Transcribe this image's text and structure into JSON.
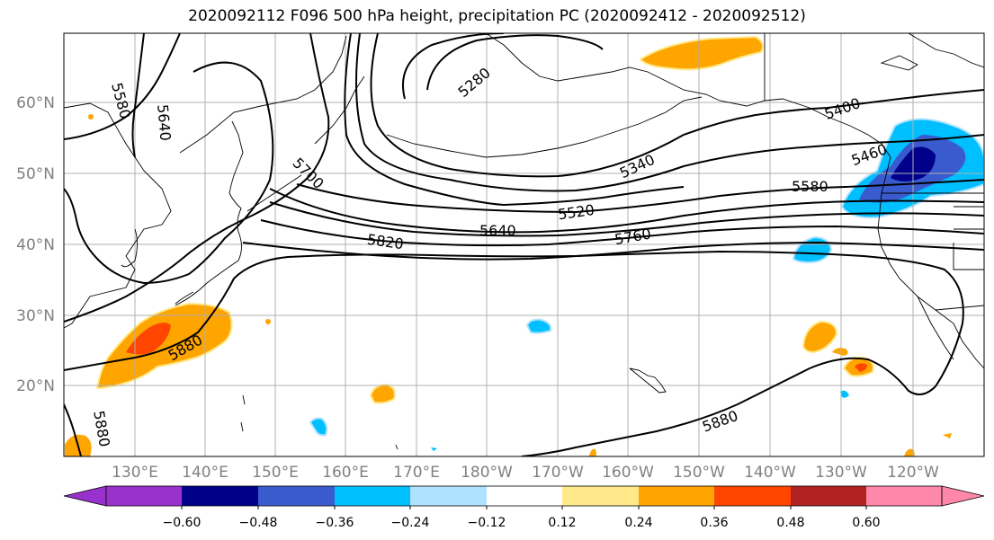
{
  "title": "2020092112 F096 500 hPa height, precipitation PC (2020092412 - 2020092512)",
  "axes": {
    "lon_labels": [
      "130°E",
      "140°E",
      "150°E",
      "160°E",
      "170°E",
      "180°W",
      "170°W",
      "160°W",
      "150°W",
      "140°W",
      "130°W",
      "120°W"
    ],
    "lat_labels": [
      "60°N",
      "50°N",
      "40°N",
      "30°N",
      "20°N"
    ]
  },
  "contour_labels": [
    {
      "text": "5580"
    },
    {
      "text": "5640"
    },
    {
      "text": "5280"
    },
    {
      "text": "5700"
    },
    {
      "text": "5340"
    },
    {
      "text": "5400"
    },
    {
      "text": "5460"
    },
    {
      "text": "5580"
    },
    {
      "text": "5520"
    },
    {
      "text": "5640"
    },
    {
      "text": "5760"
    },
    {
      "text": "5820"
    },
    {
      "text": "5880"
    },
    {
      "text": "5880"
    },
    {
      "text": "5880"
    }
  ],
  "colorbar": {
    "colors": [
      "#9932CC",
      "#00008B",
      "#3A5BCD",
      "#00BFFF",
      "#B0E2FF",
      "#FFFFFF",
      "#FFE98A",
      "#FFA500",
      "#FF4500",
      "#B22222",
      "#FF88AA"
    ],
    "tick_labels": [
      "−0.60",
      "−0.48",
      "−0.36",
      "−0.24",
      "−0.12",
      "0.12",
      "0.24",
      "0.36",
      "0.48",
      "0.60"
    ]
  }
}
